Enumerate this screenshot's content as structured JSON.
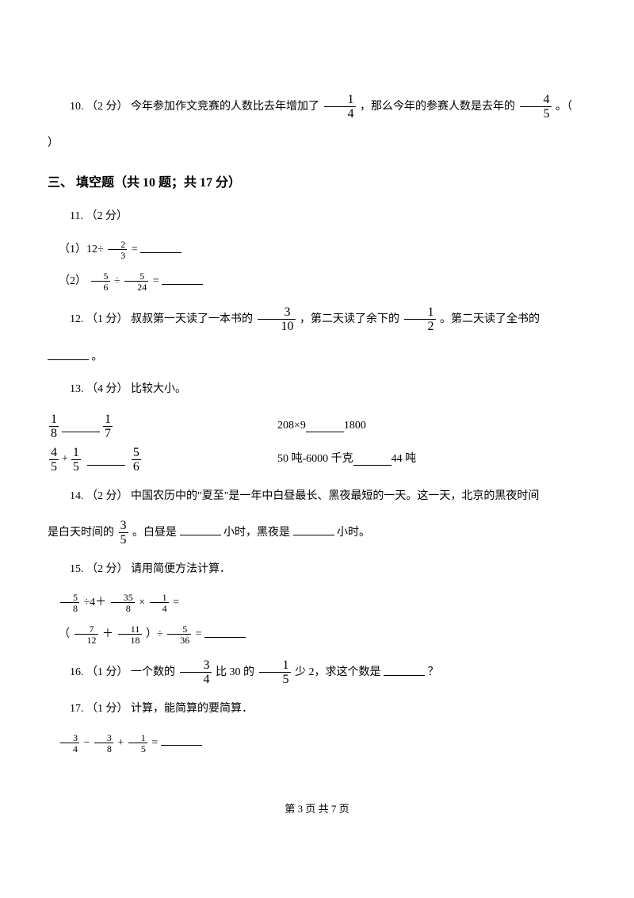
{
  "q10": {
    "num": "10.",
    "pts": "（2 分）",
    "t1": "今年参加作文竞赛的人数比去年增加了",
    "f1": {
      "n": "1",
      "d": "4"
    },
    "t2": "，那么今年的参赛人数是去年的",
    "f2": {
      "n": "4",
      "d": "5"
    },
    "t3": "。（",
    "t3b": "）"
  },
  "section3": "三、 填空题（共 10 题；共 17 分）",
  "q11": {
    "num": "11.",
    "pts": "（2 分）",
    "sub1_label": "（1）12÷",
    "sub1_f": {
      "n": "2",
      "d": "3"
    },
    "sub1_eq": " =",
    "sub2_label": "（2）",
    "sub2_fa": {
      "n": "5",
      "d": "6"
    },
    "sub2_op": "÷",
    "sub2_fb": {
      "n": "5",
      "d": "24"
    },
    "sub2_eq": " ="
  },
  "q12": {
    "num": "12.",
    "pts": "（1 分）",
    "t1": "叔叔第一天读了一本书的",
    "f1": {
      "n": "3",
      "d": "10"
    },
    "t2": "，第二天读了余下的",
    "f2": {
      "n": "1",
      "d": "2"
    },
    "t3": "。第二天读了全书的",
    "t4": "。"
  },
  "q13": {
    "num": "13.",
    "pts": "（4 分）",
    "label": "比较大小。",
    "r1a_f1": {
      "n": "1",
      "d": "8"
    },
    "r1a_f2": {
      "n": "1",
      "d": "7"
    },
    "r1b_l": "208×9",
    "r1b_r": "1800",
    "r2a_f1": {
      "n": "4",
      "d": "5"
    },
    "r2a_op": "+",
    "r2a_f2": {
      "n": "1",
      "d": "5"
    },
    "r2a_f3": {
      "n": "5",
      "d": "6"
    },
    "r2b_l": "50 吨-6000 千克",
    "r2b_r": "44 吨"
  },
  "q14": {
    "num": "14.",
    "pts": "（2 分）",
    "t1": "中国农历中的\"夏至\"是一年中白昼最长、黑夜最短的一天。这一天，北京的黑夜时间",
    "t2": "是白天时间的",
    "f1": {
      "n": "3",
      "d": "5"
    },
    "t3": "。白昼是",
    "t4": "小时，黑夜是",
    "t5": "小时。"
  },
  "q15": {
    "num": "15.",
    "pts": "（2 分）",
    "label": "请用简便方法计算．",
    "e1_fa": {
      "n": "5",
      "d": "8"
    },
    "e1_op1": "÷4＋",
    "e1_fb": {
      "n": "35",
      "d": "8"
    },
    "e1_op2": "×",
    "e1_fc": {
      "n": "1",
      "d": "4"
    },
    "e1_eq": "=",
    "e2_open": "（",
    "e2_fa": {
      "n": "7",
      "d": "12"
    },
    "e2_plus": " ＋ ",
    "e2_fb": {
      "n": "11",
      "d": "18"
    },
    "e2_close": "）÷",
    "e2_fc": {
      "n": "5",
      "d": "36"
    },
    "e2_eq": " ="
  },
  "q16": {
    "num": "16.",
    "pts": "（1 分）",
    "t1": "一个数的",
    "f1": {
      "n": "3",
      "d": "4"
    },
    "t2": "比 30 的",
    "f2": {
      "n": "1",
      "d": "5"
    },
    "t3": "少 2，求这个数是",
    "t4": "？"
  },
  "q17": {
    "num": "17.",
    "pts": "（1 分）",
    "label": "计算，能简算的要简算．",
    "fa": {
      "n": "3",
      "d": "4"
    },
    "op1": "−",
    "fb": {
      "n": "3",
      "d": "8"
    },
    "op2": "+",
    "fc": {
      "n": "1",
      "d": "5"
    },
    "eq": "="
  },
  "footer": {
    "text": "第 3 页 共 7 页"
  }
}
